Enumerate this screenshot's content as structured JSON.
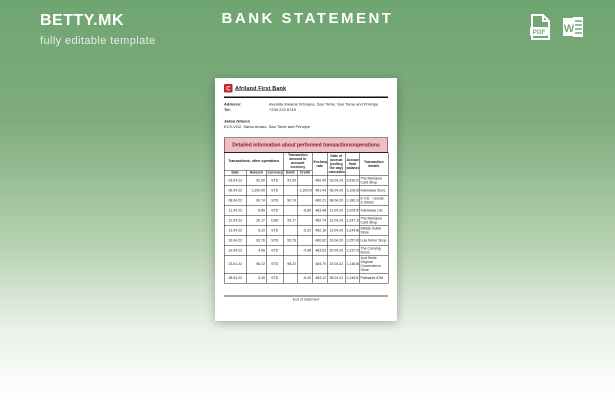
{
  "header": {
    "brand": "BETTY.MK",
    "tagline": "fully editable template",
    "title": "BANK STATEMENT",
    "pdf_icon_label": "PDF",
    "word_icon_label": "W"
  },
  "colors": {
    "background_green": "#6fa571",
    "banner_pink": "#eec0c4",
    "banner_text_maroon": "#7b1f24",
    "emblem_red": "#c0272d",
    "footer_rule_olive": "#55552e"
  },
  "document": {
    "bank_name": "Afriland First Bank",
    "emblem_glyph": "C",
    "info": {
      "address_label": "Address:",
      "address_value": "Avenida Kwame N'Guana, Sao Tomé, Sao Tome and Principe",
      "tel_label": "Tel:",
      "tel_value": "+239 222 6749"
    },
    "recipient": {
      "name": "Jalisa Gibson",
      "address": "EC9-VG2, Santo Amaro, Sao Tome and Principe"
    },
    "table": {
      "title": "Detailed information about performed transactions/operations",
      "groups": [
        "Transactions, other operations",
        "Transaction amount in account currency",
        "Exchange rate",
        "Date of accrual (ending the day) calculation",
        "Account final balance",
        "Transaction details"
      ],
      "subheaders": [
        "Date",
        "Amount",
        "Currency",
        "Debit",
        "Credit"
      ],
      "rows": [
        {
          "cells": [
            "03.04.22",
            "92.50",
            "STD",
            "92.50",
            "",
            "480.49",
            "03.04.20",
            "2,639.02",
            "The Mantauto Card Shop"
          ]
        },
        {
          "cells": [
            "06.04.22",
            "1,200.00",
            "STD",
            "",
            "-1,200.00",
            "481.44",
            "06.04.20",
            "3,106.08",
            "Adamawa Store"
          ]
        },
        {
          "cells": [
            "08.04.22",
            "90.74",
            "STD",
            "90.74",
            "",
            "480.21",
            "08.04.20",
            "1,180.16",
            "K.V.D. - Goods & Drinks"
          ]
        },
        {
          "cells": [
            "11.04.22",
            "8.80",
            "STD",
            "",
            "-8.80",
            "483.48",
            "11.04.20",
            "1,204.59",
            "Adamawa List"
          ]
        },
        {
          "cells": [
            "12.04.22",
            "26.17",
            "USD",
            "26.17",
            "",
            "482.74",
            "12.04.20",
            "1,247.10",
            "The Mantauto Card Shop"
          ]
        },
        {
          "cells": [
            "13.04.22",
            "6.22",
            "STD",
            "",
            "-6.22",
            "482.16",
            "13.04.20",
            "1,244.88",
            "Initiate Outlet Store"
          ]
        },
        {
          "cells": [
            "16.04.22",
            "93.76",
            "STD",
            "93.76",
            "",
            "480.62",
            "16.04.20",
            "1,257.68",
            "Lula ferrier Shop"
          ]
        },
        {
          "cells": [
            "19.04.22",
            "4.08",
            "STD",
            "",
            "-4.08",
            "483.63",
            "20.04.20",
            "1,237.28",
            "The Carrying Room"
          ]
        },
        {
          "cells": [
            "23.04.22",
            "98.22",
            "STD",
            "98.22",
            "",
            "484.70",
            "23.04.22",
            "1,148.88",
            "Just Smile Original Convenience Store"
          ]
        },
        {
          "cells": [
            "28.04.22",
            "6.20",
            "STD",
            "",
            "-6.20",
            "483.12",
            "28.04.22",
            "1,246.81",
            "Palmares ATM"
          ]
        }
      ],
      "column_align": [
        "c",
        "r",
        "c",
        "r",
        "r",
        "r",
        "c",
        "r",
        "l"
      ]
    },
    "footer": "End of statement"
  }
}
